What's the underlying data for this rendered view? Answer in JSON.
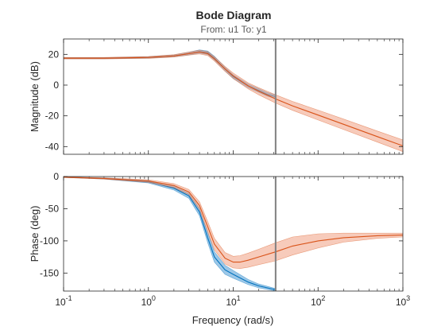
{
  "chart_data": {
    "type": "line",
    "title": "Bode Diagram",
    "subtitle": "From: u1  To: y1",
    "xlabel": "Frequency (rad/s)",
    "xscale": "log",
    "xlim": [
      0.1,
      1000
    ],
    "x_tick_labels": [
      {
        "base": "10",
        "exp": "-1"
      },
      {
        "base": "10",
        "exp": "0"
      },
      {
        "base": "10",
        "exp": "1"
      },
      {
        "base": "10",
        "exp": "2"
      },
      {
        "base": "10",
        "exp": "3"
      }
    ],
    "marker_frequency": 31.6,
    "colors": {
      "blue_line": "#0072bd",
      "blue_band": "#4d9bd6",
      "orange_line": "#d95319",
      "orange_band": "#f0a083",
      "marker": "#808080"
    },
    "panels": [
      {
        "ylabel": "Magnitude (dB)",
        "ylim": [
          -45,
          30
        ],
        "yticks": [
          20,
          0,
          -20,
          -40
        ],
        "ytick_labels": [
          "20",
          "0",
          "-20",
          "-40"
        ],
        "series": [
          {
            "color": "blue",
            "x": [
              0.1,
              0.3,
              1,
              2,
              3,
              4,
              5,
              6,
              8,
              10,
              15,
              20,
              25,
              31.6
            ],
            "y": [
              17.5,
              17.5,
              18.0,
              19.0,
              20.5,
              21.8,
              21.0,
              17.5,
              10.5,
              5.5,
              -0.5,
              -3.5,
              -6.0,
              -7.5
            ],
            "band": [
              0.4,
              0.4,
              0.5,
              0.6,
              0.9,
              1.1,
              1.2,
              1.3,
              1.2,
              1.2,
              1.2,
              1.2,
              1.2,
              1.2
            ]
          },
          {
            "color": "orange",
            "x": [
              0.1,
              0.3,
              1,
              2,
              3,
              4,
              5,
              6,
              8,
              10,
              15,
              20,
              31.6,
              50,
              100,
              200,
              500,
              1000
            ],
            "y": [
              17.5,
              17.5,
              18.0,
              19.0,
              20.5,
              21.5,
              20.5,
              17.0,
              10.5,
              6.0,
              -0.5,
              -4.0,
              -9.0,
              -13.5,
              -19.5,
              -25.5,
              -33.5,
              -39.5
            ],
            "band": [
              0.5,
              0.5,
              0.6,
              0.8,
              1.0,
              1.2,
              1.3,
              1.4,
              1.6,
              1.8,
              2.0,
              2.3,
              2.7,
              2.9,
              3.2,
              3.4,
              3.6,
              3.8
            ]
          }
        ]
      },
      {
        "ylabel": "Phase (deg)",
        "ylim": [
          -178,
          0
        ],
        "yticks": [
          0,
          -50,
          -100,
          -150
        ],
        "ytick_labels": [
          "0",
          "-50",
          "-100",
          "-150"
        ],
        "series": [
          {
            "color": "blue",
            "x": [
              0.1,
              0.3,
              1,
              2,
              3,
              4,
              5,
              6,
              8,
              10,
              15,
              20,
              31.6
            ],
            "y": [
              -1,
              -3,
              -8,
              -18,
              -30,
              -55,
              -95,
              -125,
              -145,
              -152,
              -164,
              -170,
              -176
            ],
            "band": [
              0.5,
              1,
              2,
              3,
              4,
              6,
              8,
              8,
              7,
              6,
              4,
              3,
              2
            ]
          },
          {
            "color": "orange",
            "x": [
              0.1,
              0.3,
              1,
              2,
              3,
              4,
              5,
              6,
              8,
              10,
              12,
              15,
              20,
              31.6,
              50,
              100,
              200,
              500,
              1000
            ],
            "y": [
              -1,
              -3,
              -7,
              -14,
              -24,
              -45,
              -78,
              -105,
              -127,
              -133,
              -133,
              -130,
              -125,
              -117,
              -108,
              -100,
              -95,
              -92,
              -91
            ],
            "band": [
              0.5,
              1,
              2,
              3,
              4,
              6,
              8,
              9,
              9,
              9,
              10,
              11,
              12,
              14,
              14,
              11,
              7,
              4,
              3
            ]
          }
        ]
      }
    ]
  }
}
